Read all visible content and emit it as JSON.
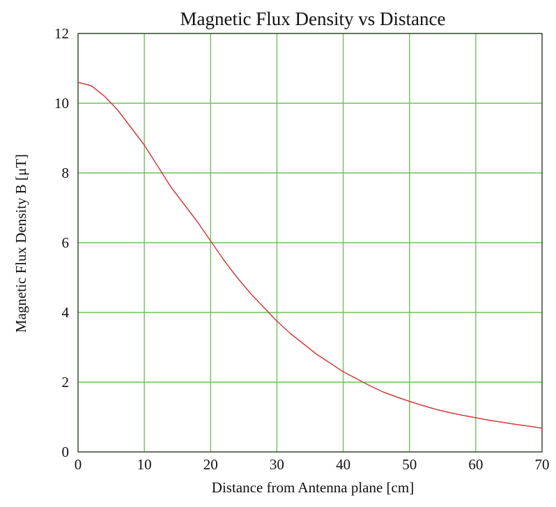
{
  "chart_data": {
    "type": "line",
    "title": "Magnetic Flux Density vs Distance",
    "xlabel": "Distance from Antenna plane [cm]",
    "ylabel": "Magnetic Flux Density B [μT]",
    "xlim": [
      0,
      70
    ],
    "ylim": [
      0,
      12
    ],
    "x_ticks": [
      0,
      10,
      20,
      30,
      40,
      50,
      60,
      70
    ],
    "y_ticks": [
      0,
      2,
      4,
      6,
      8,
      10,
      12
    ],
    "x_tick_labels": [
      "0",
      "10",
      "20",
      "30",
      "40",
      "50",
      "60",
      "70"
    ],
    "y_tick_labels": [
      "0",
      "2",
      "4",
      "6",
      "8",
      "10",
      "12"
    ],
    "grid": true,
    "colors": {
      "grid": "#6cc25a",
      "frame": "#2f2f2f",
      "series": "#d23b3b"
    },
    "series": [
      {
        "x": [
          0,
          2,
          4,
          6,
          8,
          10,
          12,
          14,
          16,
          18,
          20,
          22,
          24,
          26,
          28,
          30,
          32,
          34,
          36,
          38,
          40,
          42,
          44,
          46,
          48,
          50,
          52,
          54,
          56,
          58,
          60,
          62,
          64,
          66,
          68,
          70
        ],
        "values": [
          10.6,
          10.5,
          10.2,
          9.8,
          9.3,
          8.8,
          8.2,
          7.6,
          7.1,
          6.6,
          6.05,
          5.5,
          5.0,
          4.55,
          4.15,
          3.75,
          3.4,
          3.1,
          2.8,
          2.55,
          2.3,
          2.1,
          1.9,
          1.72,
          1.58,
          1.45,
          1.33,
          1.22,
          1.13,
          1.05,
          0.98,
          0.91,
          0.85,
          0.79,
          0.74,
          0.68
        ]
      }
    ]
  }
}
